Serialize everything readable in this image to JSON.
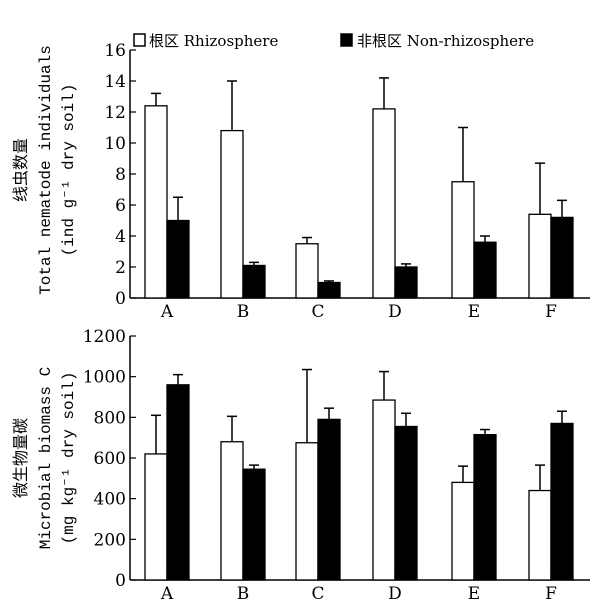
{
  "legend": {
    "rhizosphere": "根区 Rhizosphere",
    "non_rhizosphere": "非根区 Non-rhizosphere"
  },
  "colors": {
    "rhizosphere": "#ffffff",
    "non_rhizosphere": "#000000",
    "axis": "#000000"
  },
  "chart_data": [
    {
      "type": "bar",
      "categories": [
        "A",
        "B",
        "C",
        "D",
        "E",
        "F"
      ],
      "ylabel_cn": "线虫数量",
      "ylabel_en1": "Total nematode individuals",
      "ylabel_en2": "(ind g⁻¹ dry soil)",
      "ylim": [
        0,
        16
      ],
      "yticks": [
        0,
        2,
        4,
        6,
        8,
        10,
        12,
        14,
        16
      ],
      "grid": false,
      "legend_position": "top",
      "series": [
        {
          "name": "根区 Rhizosphere",
          "values": [
            12.4,
            10.8,
            3.5,
            12.2,
            7.5,
            5.4
          ],
          "errors": [
            0.8,
            3.2,
            0.4,
            2.0,
            3.5,
            3.3
          ]
        },
        {
          "name": "非根区 Non-rhizosphere",
          "values": [
            5.0,
            2.1,
            1.0,
            2.0,
            3.6,
            5.2
          ],
          "errors": [
            1.5,
            0.2,
            0.1,
            0.2,
            0.4,
            1.1
          ]
        }
      ]
    },
    {
      "type": "bar",
      "categories": [
        "A",
        "B",
        "C",
        "D",
        "E",
        "F"
      ],
      "ylabel_cn": "微生物量碳",
      "ylabel_en1": "Microbial biomass C",
      "ylabel_en2": "(mg kg⁻¹ dry soil)",
      "ylim": [
        0,
        1200
      ],
      "yticks": [
        0,
        200,
        400,
        600,
        800,
        1000,
        1200
      ],
      "grid": false,
      "series": [
        {
          "name": "根区 Rhizosphere",
          "values": [
            620,
            680,
            675,
            885,
            480,
            440
          ],
          "errors": [
            190,
            125,
            360,
            140,
            80,
            125
          ]
        },
        {
          "name": "非根区 Non-rhizosphere",
          "values": [
            960,
            545,
            790,
            755,
            715,
            770
          ],
          "errors": [
            50,
            20,
            55,
            65,
            25,
            60
          ]
        }
      ]
    }
  ]
}
